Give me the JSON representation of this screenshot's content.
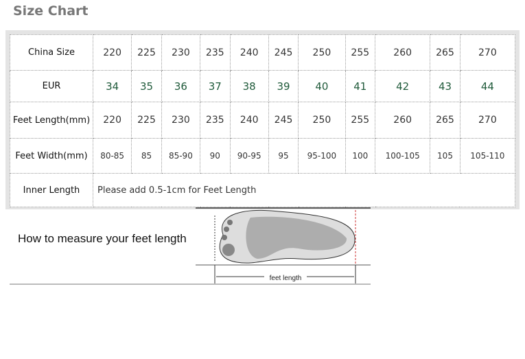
{
  "title": "Size Chart",
  "table": {
    "rows": [
      {
        "label": "China Size",
        "values": [
          "220",
          "225",
          "230",
          "235",
          "240",
          "245",
          "250",
          "255",
          "260",
          "265",
          "270"
        ]
      },
      {
        "label": "EUR",
        "values": [
          "34",
          "35",
          "36",
          "37",
          "38",
          "39",
          "40",
          "41",
          "42",
          "43",
          "44"
        ]
      },
      {
        "label": "Feet Length(mm)",
        "values": [
          "220",
          "225",
          "230",
          "235",
          "240",
          "245",
          "250",
          "255",
          "260",
          "265",
          "270"
        ]
      },
      {
        "label": "Feet Width(mm)",
        "values": [
          "80-85",
          "85",
          "85-90",
          "90",
          "90-95",
          "95",
          "95-100",
          "100",
          "100-105",
          "105",
          "105-110"
        ]
      }
    ],
    "inner": {
      "label": "Inner Length",
      "note": "Please add 0.5-1cm for Feet Length"
    }
  },
  "measure": {
    "text": "How to measure your feet length",
    "diagram_label": "feet length"
  }
}
